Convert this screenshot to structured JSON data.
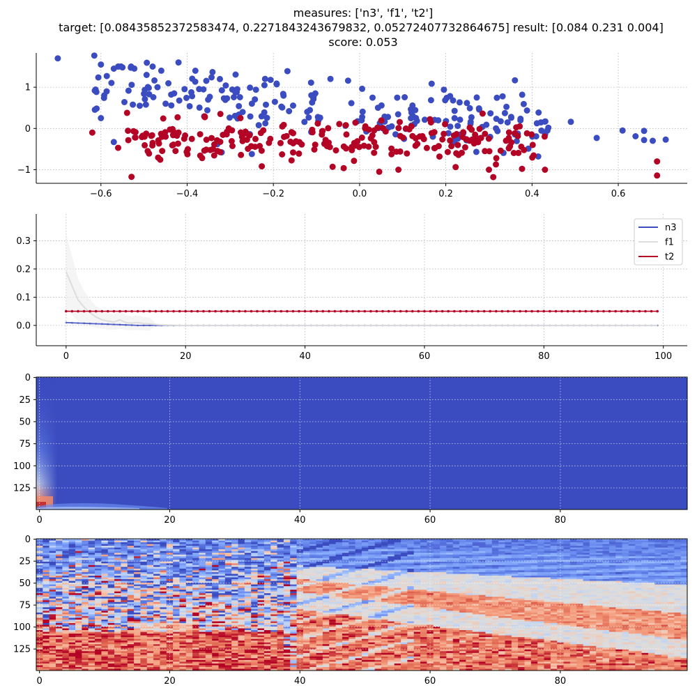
{
  "figure": {
    "title_lines": [
      "measures: ['n3', 'f1', 't2']",
      "target: [0.08435852372583474, 0.2271843243679832, 0.05272407732864675] result: [0.084 0.231 0.004]",
      "score: 0.053"
    ],
    "colors": {
      "blue": "#3b4cc0",
      "red": "#b40426",
      "gray": "#dddddd"
    }
  },
  "chart_data": [
    {
      "type": "scatter",
      "xlim": [
        -0.75,
        0.76
      ],
      "ylim": [
        -1.33,
        1.83
      ],
      "xticks": [
        -0.6,
        -0.4,
        -0.2,
        0.0,
        0.2,
        0.4,
        0.6
      ],
      "xtick_labels": [
        "−0.6",
        "−0.4",
        "−0.2",
        "0.0",
        "0.2",
        "0.4",
        "0.6"
      ],
      "yticks": [
        -1,
        0,
        1
      ],
      "ytick_labels": [
        "−1",
        "0",
        "1"
      ],
      "grid": true,
      "series": [
        {
          "color": "#3b4cc0",
          "n_points": 250,
          "x_range": [
            -0.7,
            0.71
          ],
          "y_at_x_min": 1.1,
          "y_at_x_max": -0.15,
          "y_spread": 0.35,
          "points": [
            [
              -0.7,
              1.7
            ],
            [
              -0.6,
              1.55
            ],
            [
              -0.6,
              0.25
            ],
            [
              -0.57,
              1.45
            ],
            [
              -0.56,
              1.5
            ],
            [
              -0.55,
              1.48
            ],
            [
              -0.53,
              1.5
            ],
            [
              -0.51,
              0.55
            ],
            [
              -0.5,
              0.84
            ],
            [
              -0.48,
              1.5
            ],
            [
              -0.46,
              1.4
            ],
            [
              -0.45,
              0.6
            ],
            [
              -0.43,
              0.85
            ],
            [
              -0.42,
              1.6
            ],
            [
              -0.57,
              -0.33
            ],
            [
              -0.33,
              -0.38
            ],
            [
              -0.25,
              -0.62
            ],
            [
              -0.32,
              -0.58
            ],
            [
              0.49,
              0.16
            ],
            [
              0.55,
              -0.23
            ],
            [
              0.61,
              -0.05
            ],
            [
              0.64,
              -0.19
            ],
            [
              0.66,
              -0.06
            ],
            [
              0.66,
              -0.28
            ],
            [
              0.68,
              -0.3
            ],
            [
              0.71,
              -0.27
            ]
          ]
        },
        {
          "color": "#b40426",
          "n_points": 250,
          "x_range": [
            -0.62,
            0.7
          ],
          "y_at_x_min": -0.3,
          "y_at_x_max": -0.35,
          "y_spread": 0.25,
          "points": [
            [
              -0.62,
              -0.1
            ],
            [
              -0.56,
              -0.47
            ],
            [
              -0.52,
              -0.22
            ],
            [
              -0.48,
              -0.35
            ],
            [
              -0.45,
              -0.2
            ],
            [
              -0.42,
              -0.1
            ],
            [
              0.43,
              -1.0
            ],
            [
              0.69,
              -0.8
            ],
            [
              0.69,
              -1.14
            ],
            [
              0.31,
              -1.18
            ],
            [
              0.3,
              -1.0
            ],
            [
              0.09,
              -1.0
            ]
          ]
        }
      ]
    },
    {
      "type": "line",
      "xlim": [
        -5,
        104
      ],
      "ylim": [
        -0.072,
        0.395
      ],
      "xticks": [
        0,
        20,
        40,
        60,
        80,
        100
      ],
      "xtick_labels": [
        "0",
        "20",
        "40",
        "60",
        "80",
        "100"
      ],
      "yticks": [
        0.0,
        0.1,
        0.2,
        0.3
      ],
      "ytick_labels": [
        "0.0",
        "0.1",
        "0.2",
        "0.3"
      ],
      "grid": true,
      "legend_position": "upper right",
      "series": [
        {
          "name": "n3",
          "color": "#3b4cc0",
          "x_start": 0,
          "x_end": 99,
          "x_step": 1,
          "start_value": 0.01,
          "end_value": 0.0,
          "decay_steps": 12
        },
        {
          "name": "f1",
          "color": "#dddddd",
          "x_start": 0,
          "x_end": 99,
          "x_step": 1,
          "values_first": [
            0.19,
            0.14,
            0.09,
            0.065,
            0.045,
            0.03,
            0.02,
            0.015,
            0.012,
            0.02,
            0.01,
            0.008,
            0.01,
            0.006,
            0.005,
            0.003,
            0.002,
            0.001,
            0.001,
            0.0
          ],
          "tail_value": 0.0
        },
        {
          "name": "t2",
          "color": "#b40426",
          "x_start": 0,
          "x_end": 99,
          "x_step": 1,
          "constant_value": 0.05
        }
      ]
    },
    {
      "type": "heatmap",
      "colormap": "coolwarm",
      "x_range": [
        0,
        99
      ],
      "y_range": [
        0,
        149
      ],
      "xticks": [
        0,
        20,
        40,
        60,
        80
      ],
      "xtick_labels": [
        "0",
        "20",
        "40",
        "60",
        "80"
      ],
      "yticks": [
        0,
        25,
        50,
        75,
        100,
        125
      ],
      "ytick_labels": [
        "0",
        "25",
        "50",
        "75",
        "100",
        "125"
      ],
      "grid": true
    },
    {
      "type": "heatmap",
      "colormap": "coolwarm",
      "x_range": [
        0,
        99
      ],
      "y_range": [
        0,
        149
      ],
      "xticks": [
        0,
        20,
        40,
        60,
        80
      ],
      "xtick_labels": [
        "0",
        "20",
        "40",
        "60",
        "80"
      ],
      "yticks": [
        0,
        25,
        50,
        75,
        100,
        125
      ],
      "ytick_labels": [
        "0",
        "25",
        "50",
        "75",
        "100",
        "125"
      ],
      "grid": true
    }
  ]
}
